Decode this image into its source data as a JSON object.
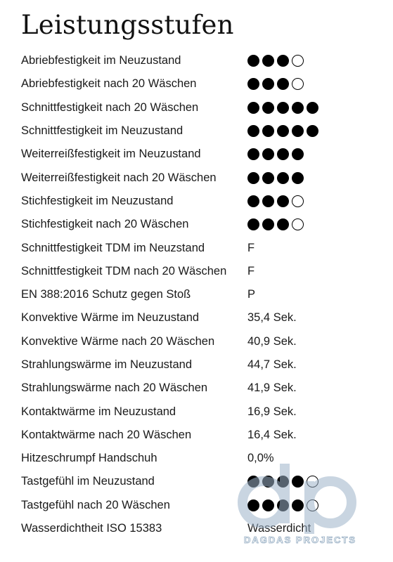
{
  "title": "Leistungsstufen",
  "rows": [
    {
      "label": "Abriebfestigkeit im Neuzustand",
      "rating": {
        "filled": 3,
        "total": 4
      }
    },
    {
      "label": "Abriebfestigkeit nach 20 Wäschen",
      "rating": {
        "filled": 3,
        "total": 4
      }
    },
    {
      "label": "Schnittfestigkeit nach 20 Wäschen",
      "rating": {
        "filled": 5,
        "total": 5
      }
    },
    {
      "label": "Schnittfestigkeit im Neuzustand",
      "rating": {
        "filled": 5,
        "total": 5
      }
    },
    {
      "label": "Weiterreißfestigkeit im Neuzustand",
      "rating": {
        "filled": 4,
        "total": 4
      }
    },
    {
      "label": "Weiterreißfestigkeit nach 20 Wäschen",
      "rating": {
        "filled": 4,
        "total": 4
      }
    },
    {
      "label": "Stichfestigkeit im Neuzustand",
      "rating": {
        "filled": 3,
        "total": 4
      }
    },
    {
      "label": "Stichfestigkeit nach 20 Wäschen",
      "rating": {
        "filled": 3,
        "total": 4
      }
    },
    {
      "label": "Schnittfestigkeit TDM im Neuzstand",
      "value": "F"
    },
    {
      "label": "Schnittfestigkeit TDM nach 20 Wäschen",
      "value": "F"
    },
    {
      "label": "EN 388:2016 Schutz gegen Stoß",
      "value": "P"
    },
    {
      "label": "Konvektive Wärme im Neuzustand",
      "value": "35,4 Sek."
    },
    {
      "label": "Konvektive Wärme nach 20 Wäschen",
      "value": "40,9 Sek."
    },
    {
      "label": "Strahlungswärme im Neuzustand",
      "value": "44,7 Sek."
    },
    {
      "label": "Strahlungswärme nach 20 Wäschen",
      "value": "41,9 Sek."
    },
    {
      "label": "Kontaktwärme im Neuzustand",
      "value": "16,9 Sek."
    },
    {
      "label": "Kontaktwärme nach 20 Wäschen",
      "value": "16,4 Sek."
    },
    {
      "label": "Hitzeschrumpf Handschuh",
      "value": "0,0%"
    },
    {
      "label": "Tastgefühl im Neuzustand",
      "rating": {
        "filled": 4,
        "total": 5
      }
    },
    {
      "label": "Tastgefühl nach 20 Wäschen",
      "rating": {
        "filled": 4,
        "total": 5
      }
    },
    {
      "label": "Wasserdichtheit ISO 15383",
      "value": "Wasserdicht"
    }
  ],
  "watermark": {
    "logo_text": "dp",
    "caption": "DAGDAS PROJECTS",
    "color": "#9db3c9"
  }
}
